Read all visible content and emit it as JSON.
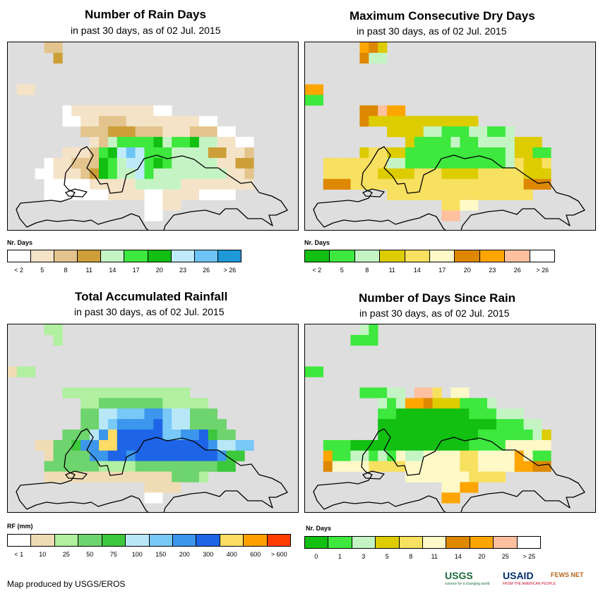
{
  "panels": [
    {
      "id": "rain-days",
      "title": "Number of Rain Days",
      "subtitle": "in past 30 days, as of 02 Jul. 2015",
      "legend_title": "Nr. Days",
      "legend_colors": [
        "#ffffff",
        "#f5e3c8",
        "#e2c48c",
        "#cc9f38",
        "#c4f4c4",
        "#3ee83e",
        "#11c011",
        "#bfeafa",
        "#6dc4f4",
        "#1e98d8"
      ],
      "legend_labels": [
        "< 2",
        "5",
        "8",
        "11",
        "14",
        "17",
        "20",
        "23",
        "26",
        "> 26"
      ],
      "grid": [
        "....CC..........................",
        ".....D..........................",
        "................................",
        "................................",
        ".BB.............................",
        "................................",
        "......aBBBBBBBBBaa..............",
        "......aaBBCCCBBBBBBBBaa.........",
        "........CCCDDDCCCBBBCCCaa.......",
        ".........BCEFFFFGEFFGEEBBaa.....",
        "......BBBCFGHIHFFFEEEEDDBBC.....",
        "....aBBCCCGFEHHFGFEEEEEBBDD.....",
        "...aaBBBCDGFEEHFEEEEEEEEBBC.....",
        "....aaaaaBBBBBEEEEEBBBBBBBB.....",
        "....aaaaaaaBBBBaaBBBBaaaa.......",
        "...............aaBB.............",
        "...............aa...............",
        "................................"
      ]
    },
    {
      "id": "dry-days",
      "title": "Maximum Consecutive Dry Days",
      "subtitle": "in past 30 days, as of 02 Jul. 2015",
      "legend_title": "Nr. Days",
      "legend_colors": [
        "#11c011",
        "#3ee83e",
        "#c4f4c4",
        "#dccc00",
        "#f8e060",
        "#fff9c8",
        "#dd8800",
        "#ffa500",
        "#ffc0a0",
        "#ffffff"
      ],
      "legend_labels": [
        "< 2",
        "5",
        "8",
        "11",
        "14",
        "17",
        "20",
        "23",
        "26",
        "> 26"
      ],
      "grid": [
        "......HGD.......................",
        "......GCC.......................",
        "................................",
        "................................",
        "HH..............................",
        "BB..............................",
        "......GGIHH.....................",
        "......GDDDDDDDDDDDD.............",
        ".........DDDDCCBBBCCBBC.........",
        "...........DBBBBCBBCCCCDDD......",
        "......DEEDDBBBBBBBBBBBCDDBB.....",
        "..EEEEEEECCBBBBBBBBBBBCEDDE.....",
        "..EEEEEEDDDDEEEDDDDEEEEEDDD.....",
        "..GGGEEEEEEEEEEEEEEEEEEEGGG.....",
        ".........EEEEEEEEEEEEEEEE.......",
        "...............EEFF.............",
        "...............II...............",
        "................................"
      ]
    },
    {
      "id": "rainfall",
      "title": "Total Accumulated Rainfall",
      "subtitle": "in past 30 days, as of 02 Jul. 2015",
      "legend_title": "RF (mm)",
      "legend_colors": [
        "#ffffff",
        "#f0dcb4",
        "#b0f0a0",
        "#6ed46e",
        "#3cc83c",
        "#b8e8f8",
        "#78c8f8",
        "#3c96ec",
        "#1e64e6",
        "#ffdc64",
        "#ffa000",
        "#ff3c00"
      ],
      "legend_labels": [
        "< 1",
        "10",
        "25",
        "50",
        "75",
        "100",
        "150",
        "200",
        "300",
        "400",
        "600",
        "> 600"
      ],
      "grid": [
        "....CC..........................",
        ".....C..........................",
        "................................",
        "................................",
        "BCC.............................",
        "................................",
        "......CCCCCCCCCCCCCC............",
        "........CCDDDDDDDCCCCC..........",
        "........DDFFGGGHHGFFDDD.........",
        "........DDFGHHHHIGFFDDDD........",
        "......DDDFHJIIIIIGGHHIEDD.......",
        "...BBDDEHHJJIIIIIIIIIIHFFGG.....",
        "....BDDDDHHIIHIIIIIIIIIHEE......",
        "....DDDDDDCCCCDDDDDDDDDEE.......",
        "....BBBBBBBBBBBBBBDDDC..........",
        "...............BBBB.............",
        "...............AA...............",
        "................................"
      ]
    },
    {
      "id": "days-since-rain",
      "title": "Number of Days Since Rain",
      "subtitle": "in past 30 days, as of 02 Jul. 2015",
      "legend_title": "Nr. Days",
      "legend_colors": [
        "#11c011",
        "#3ee83e",
        "#c4f4c4",
        "#dccc00",
        "#f8e060",
        "#fff9c8",
        "#dd8800",
        "#ffa500",
        "#ffc0a0",
        "#ffffff"
      ],
      "legend_labels": [
        "0",
        "1",
        "3",
        "5",
        "8",
        "11",
        "14",
        "20",
        "25",
        "> 25"
      ],
      "grid": [
        "......CB........................",
        ".....BBB........................",
        "................................",
        "................................",
        "BB..............................",
        "................................",
        "......BBBCC.IIE.FF..............",
        "........CBCHHGDDDBBBC...........",
        "........BBAAAAAAAABBBCCC........",
        "........AAAAAAAAAAAAABBBCC......",
        "........AAAAAAAAAAABBBBBBCD.....",
        "..BBBAAAAAAAAAAAAABBBBFFFFF.....",
        "..HBBCCBCBFCCFFFFEEFFFFHFBB.....",
        "..GFFFFEEEEFFFFFFEEFFFFHHGG.....",
        "...........FFFFFFFEEEE..........",
        "...............FFHH.............",
        "...............HH...............",
        "................................"
      ]
    }
  ],
  "credit": "Map produced by USGS/EROS",
  "logos": {
    "usgs": "USGS",
    "usgs_tag": "science for a changing world",
    "usaid": "USAID",
    "usaid_tag": "FROM THE AMERICAN PEOPLE",
    "fewsnet": "FEWS NET"
  }
}
